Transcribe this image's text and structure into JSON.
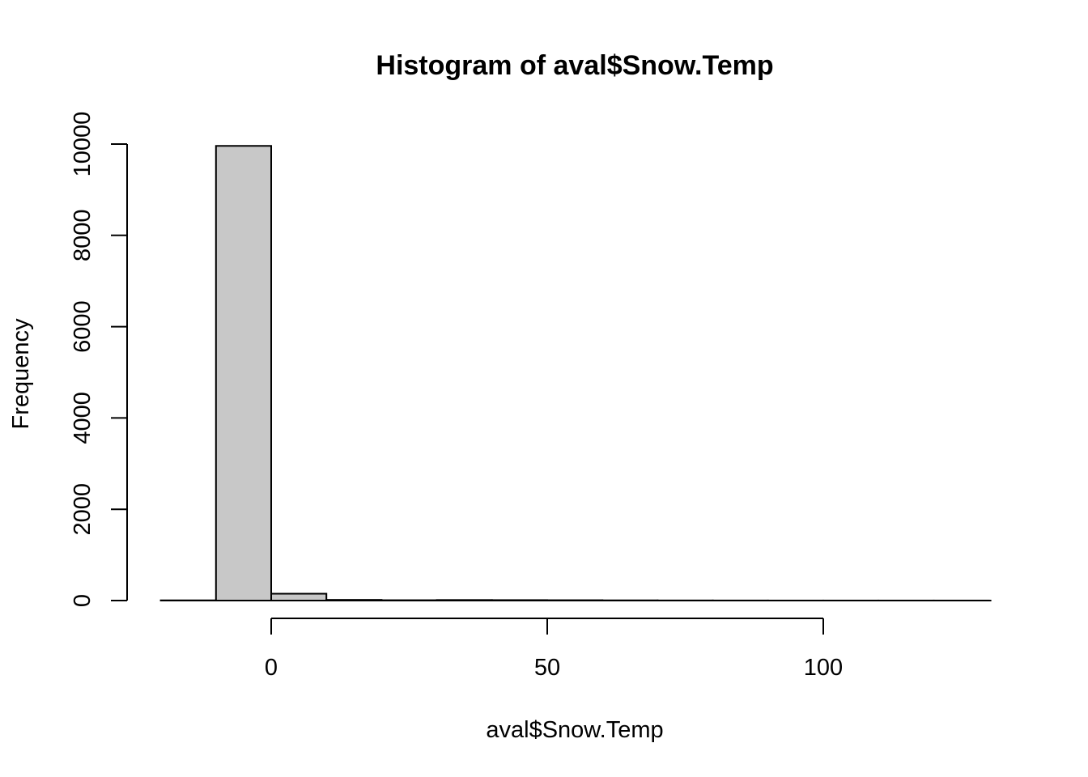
{
  "chart_data": {
    "type": "bar",
    "title": "Histogram of aval$Snow.Temp",
    "xlabel": "aval$Snow.Temp",
    "ylabel": "Frequency",
    "bins": [
      {
        "x0": -20,
        "x1": -10,
        "count": 5
      },
      {
        "x0": -10,
        "x1": 0,
        "count": 9960
      },
      {
        "x0": 0,
        "x1": 10,
        "count": 150
      },
      {
        "x0": 10,
        "x1": 20,
        "count": 15
      },
      {
        "x0": 20,
        "x1": 30,
        "count": 8
      },
      {
        "x0": 30,
        "x1": 40,
        "count": 12
      },
      {
        "x0": 40,
        "x1": 50,
        "count": 10
      },
      {
        "x0": 50,
        "x1": 60,
        "count": 8
      },
      {
        "x0": 60,
        "x1": 70,
        "count": 5
      },
      {
        "x0": 70,
        "x1": 80,
        "count": 3
      },
      {
        "x0": 80,
        "x1": 90,
        "count": 2
      },
      {
        "x0": 90,
        "x1": 100,
        "count": 1
      },
      {
        "x0": 100,
        "x1": 110,
        "count": 1
      },
      {
        "x0": 110,
        "x1": 120,
        "count": 1
      },
      {
        "x0": 120,
        "x1": 130,
        "count": 1
      }
    ],
    "xticks": [
      0,
      50,
      100
    ],
    "yticks": [
      0,
      2000,
      4000,
      6000,
      8000,
      10000
    ],
    "xlim": [
      -20,
      130
    ],
    "ylim": [
      0,
      10000
    ],
    "grid": false,
    "colors": {
      "bar_fill": "#c8c8c8",
      "bar_stroke": "#000000"
    }
  }
}
